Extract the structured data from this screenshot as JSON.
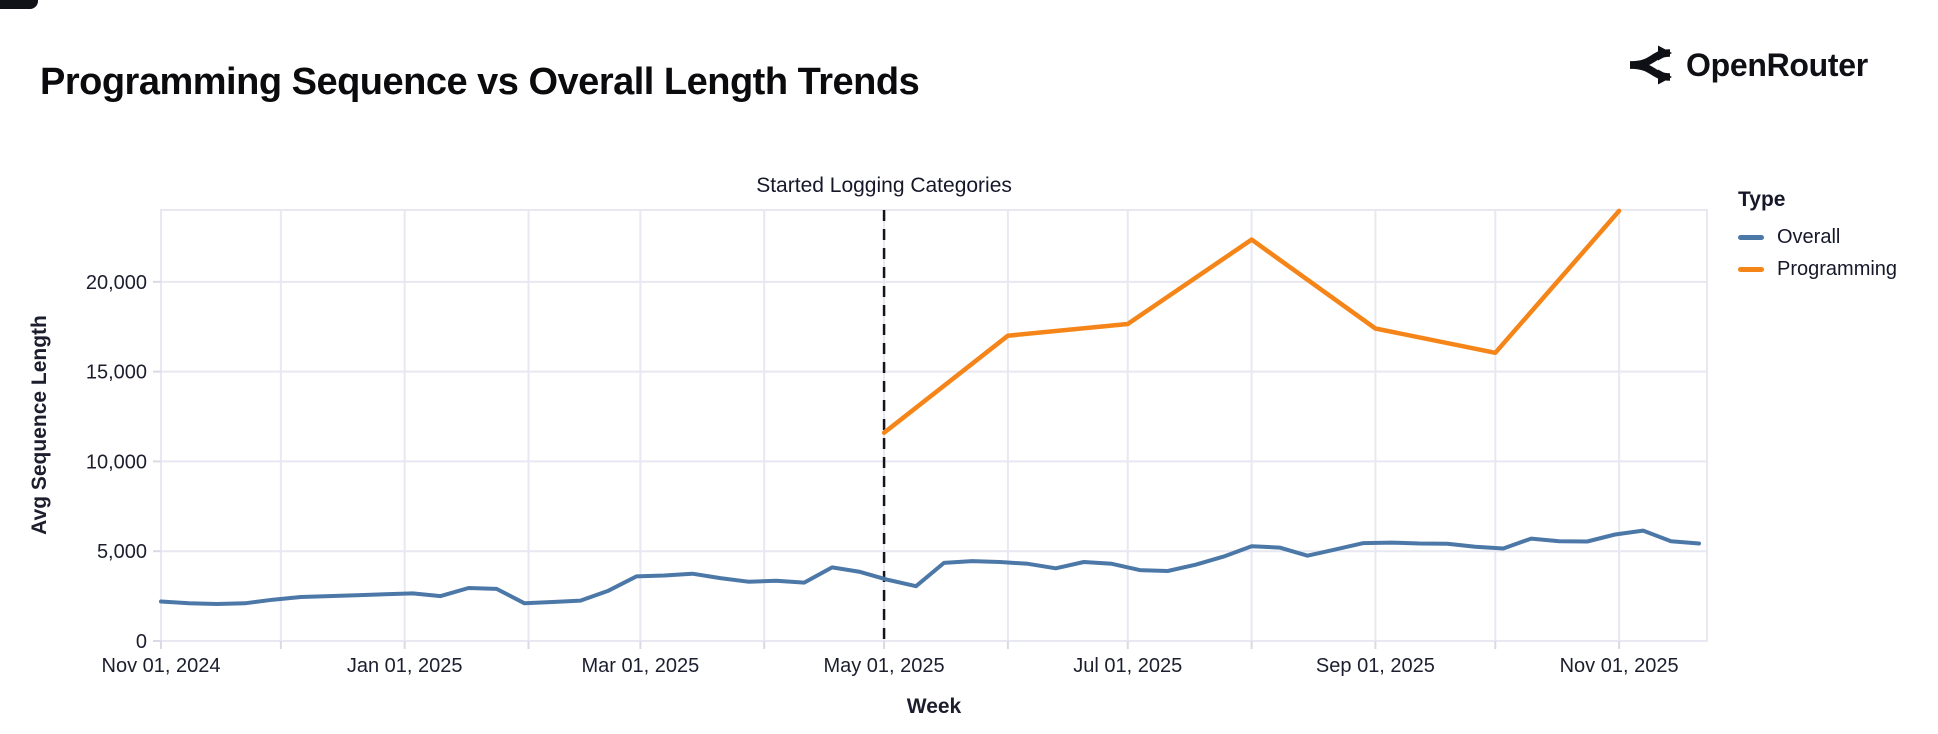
{
  "page": {
    "title": "Programming Sequence vs Overall Length Trends",
    "brand": {
      "name": "OpenRouter"
    }
  },
  "colors": {
    "overall_line": "#4c78a8",
    "programming_line": "#f58518",
    "grid": "#e7e8f1",
    "tick": "#d9dae3",
    "text": "#1c1e2e",
    "annotation_rule": "#14151c",
    "title_text": "#0b0b0e"
  },
  "chart_data": {
    "type": "line",
    "title": "Programming Sequence vs Overall Length Trends",
    "xlabel": "Week",
    "ylabel": "Avg Sequence Length",
    "grid": true,
    "x_domain": [
      "2024-11-01",
      "2025-11-23"
    ],
    "ylim": [
      0,
      24000
    ],
    "y_ticks": [
      0,
      5000,
      10000,
      15000,
      20000
    ],
    "x_ticks": [
      {
        "date": "2024-11-01",
        "label": "Nov 01, 2024"
      },
      {
        "date": "2024-12-01",
        "label": ""
      },
      {
        "date": "2025-01-01",
        "label": "Jan 01, 2025"
      },
      {
        "date": "2025-02-01",
        "label": ""
      },
      {
        "date": "2025-03-01",
        "label": "Mar 01, 2025"
      },
      {
        "date": "2025-04-01",
        "label": ""
      },
      {
        "date": "2025-05-01",
        "label": "May 01, 2025"
      },
      {
        "date": "2025-06-01",
        "label": ""
      },
      {
        "date": "2025-07-01",
        "label": "Jul 01, 2025"
      },
      {
        "date": "2025-08-01",
        "label": ""
      },
      {
        "date": "2025-09-01",
        "label": "Sep 01, 2025"
      },
      {
        "date": "2025-10-01",
        "label": ""
      },
      {
        "date": "2025-11-01",
        "label": "Nov 01, 2025"
      }
    ],
    "annotation": {
      "label": "Started Logging Categories",
      "x": "2025-05-01",
      "style": "dashed-vertical-rule"
    },
    "legend": {
      "title": "Type",
      "position": "right",
      "entries": [
        {
          "label": "Overall",
          "color": "#4c78a8"
        },
        {
          "label": "Programming",
          "color": "#f58518"
        }
      ]
    },
    "series": [
      {
        "name": "Overall",
        "color": "#4c78a8",
        "cadence": "weekly",
        "start": "2024-11-01",
        "interval_days": 7,
        "values": [
          2200,
          2100,
          2060,
          2100,
          2300,
          2450,
          2500,
          2550,
          2600,
          2650,
          2500,
          2950,
          2900,
          2100,
          2170,
          2250,
          2800,
          3600,
          3650,
          3750,
          3500,
          3300,
          3350,
          3250,
          4100,
          3850,
          3400,
          3050,
          4350,
          4450,
          4400,
          4300,
          4050,
          4400,
          4300,
          3950,
          3900,
          4250,
          4700,
          5280,
          5200,
          4750,
          5100,
          5450,
          5480,
          5430,
          5420,
          5250,
          5150,
          5700,
          5550,
          5540,
          5930,
          6150,
          5560,
          5430
        ]
      },
      {
        "name": "Programming",
        "color": "#f58518",
        "cadence": "monthly",
        "x": [
          "2025-05-01",
          "2025-06-01",
          "2025-07-01",
          "2025-08-01",
          "2025-09-01",
          "2025-10-01",
          "2025-11-01"
        ],
        "values": [
          11600,
          17000,
          17650,
          22350,
          17400,
          16050,
          23950
        ]
      }
    ]
  }
}
